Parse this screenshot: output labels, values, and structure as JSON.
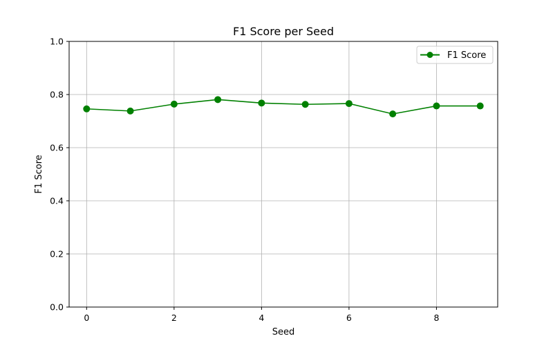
{
  "chart_data": {
    "type": "line",
    "title": "F1 Score per Seed",
    "xlabel": "Seed",
    "ylabel": "F1 Score",
    "xlim": [
      -0.4,
      9.4
    ],
    "ylim": [
      0.0,
      1.0
    ],
    "xticks": [
      0,
      2,
      4,
      6,
      8
    ],
    "xtick_labels": [
      "0",
      "2",
      "4",
      "6",
      "8"
    ],
    "yticks": [
      0.0,
      0.2,
      0.4,
      0.6,
      0.8,
      1.0
    ],
    "ytick_labels": [
      "0.0",
      "0.2",
      "0.4",
      "0.6",
      "0.8",
      "1.0"
    ],
    "grid": true,
    "legend_position": "top-right",
    "series": [
      {
        "name": "F1 Score",
        "color": "#008000",
        "marker": "circle",
        "x": [
          0,
          1,
          2,
          3,
          4,
          5,
          6,
          7,
          8,
          9
        ],
        "y": [
          0.746,
          0.738,
          0.764,
          0.781,
          0.768,
          0.763,
          0.766,
          0.727,
          0.757,
          0.757
        ]
      }
    ]
  }
}
